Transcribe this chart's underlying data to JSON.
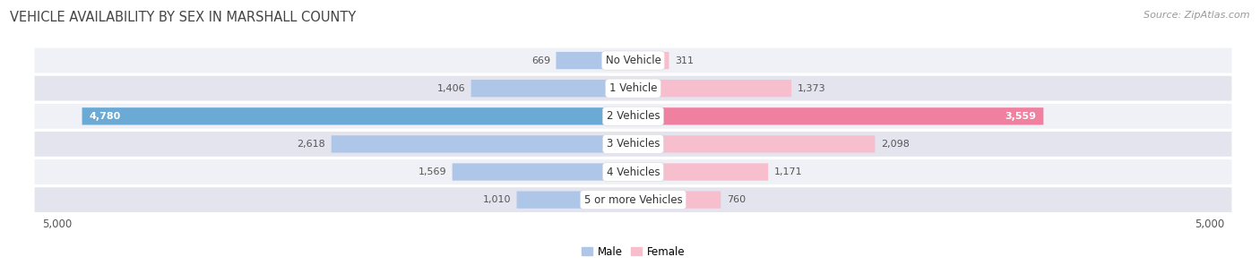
{
  "title": "VEHICLE AVAILABILITY BY SEX IN MARSHALL COUNTY",
  "source": "Source: ZipAtlas.com",
  "categories": [
    "No Vehicle",
    "1 Vehicle",
    "2 Vehicles",
    "3 Vehicles",
    "4 Vehicles",
    "5 or more Vehicles"
  ],
  "male_values": [
    669,
    1406,
    4780,
    2618,
    1569,
    1010
  ],
  "female_values": [
    311,
    1373,
    3559,
    2098,
    1171,
    760
  ],
  "male_color_light": "#aec6e8",
  "male_color_dark": "#6aaad4",
  "female_color_light": "#f7bece",
  "female_color_dark": "#f080a0",
  "row_bg_light": "#f0f0f7",
  "row_bg_dark": "#e4e4ef",
  "xlim": 5000,
  "legend_male": "Male",
  "legend_female": "Female",
  "title_fontsize": 10.5,
  "source_fontsize": 8,
  "label_fontsize": 8,
  "category_fontsize": 8.5
}
